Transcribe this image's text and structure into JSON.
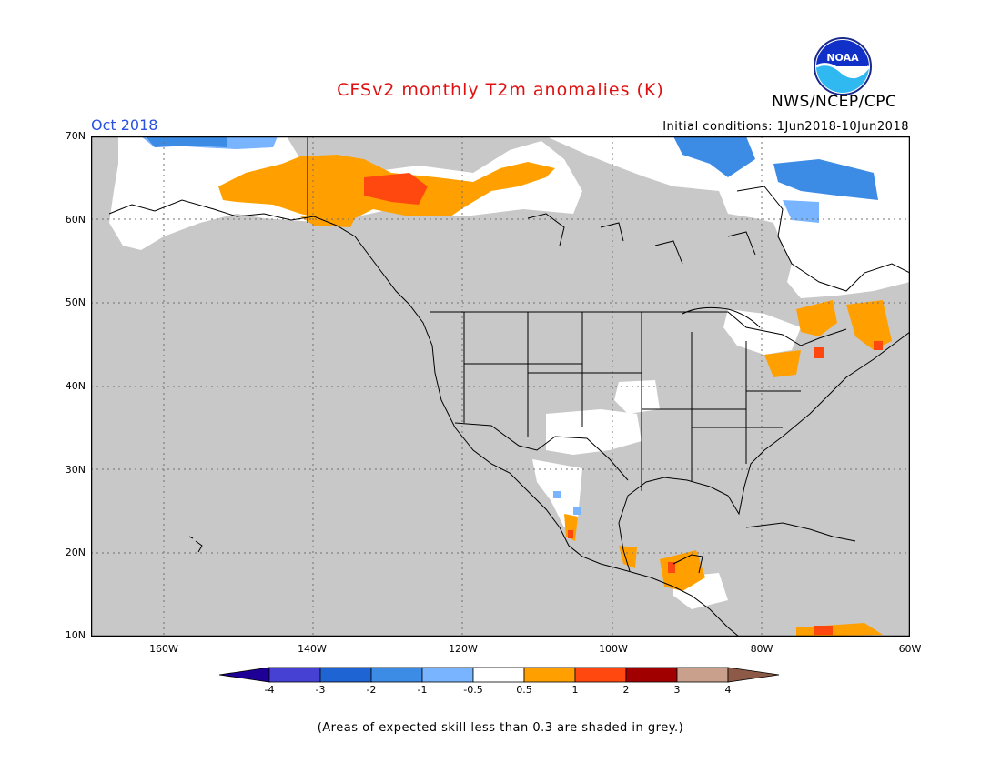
{
  "header": {
    "title": "CFSv2 monthly T2m anomalies (K)",
    "org": "NWS/NCEP/CPC",
    "month": "Oct 2018",
    "initial_conditions": "Initial conditions: 1Jun2018-10Jun2018",
    "logo_text": "NOAA"
  },
  "map": {
    "lat_labels": [
      "70N",
      "60N",
      "50N",
      "40N",
      "30N",
      "20N",
      "10N"
    ],
    "lon_labels": [
      "160W",
      "140W",
      "120W",
      "100W",
      "80W",
      "60W"
    ],
    "background_grey": "#c8c8c8",
    "land_outline_color": "#000000",
    "regions": {
      "no_signal_white": "#ffffff",
      "warm_0_5_to_1": "#ffa000",
      "warm_1_to_2": "#ff4810",
      "warm_2_to_3": "#c80000",
      "cool_minus1_to_minus0_5": "#78b4ff",
      "cool_minus2_to_minus1": "#3c8ce6"
    }
  },
  "colorbar": {
    "labels": [
      "-4",
      "-3",
      "-2",
      "-1",
      "-0.5",
      "0.5",
      "1",
      "2",
      "3",
      "4"
    ],
    "colors": [
      "#1e0096",
      "#4641d2",
      "#1e64d2",
      "#3c8ce6",
      "#78b4ff",
      "#ffffff",
      "#ffa000",
      "#ff4810",
      "#a00000",
      "#c8a08c",
      "#8c5a46"
    ]
  },
  "footnote": "(Areas of expected skill less than 0.3 are shaded in grey.)"
}
